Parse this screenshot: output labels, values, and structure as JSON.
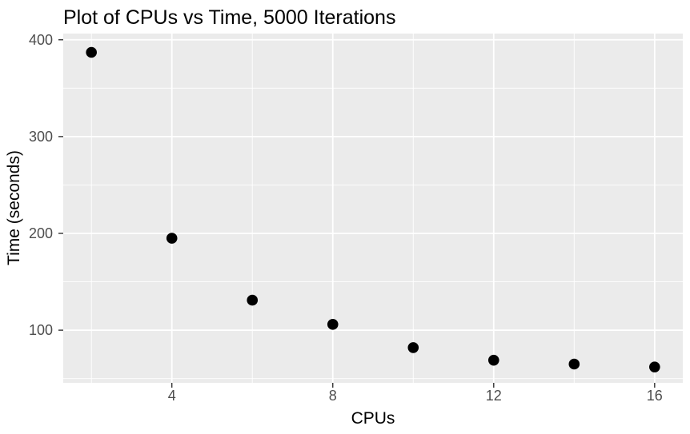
{
  "chart_data": {
    "type": "scatter",
    "title": "Plot of CPUs vs Time, 5000 Iterations",
    "xlabel": "CPUs",
    "ylabel": "Time (seconds)",
    "x": [
      2,
      4,
      6,
      8,
      10,
      12,
      14,
      16
    ],
    "y": [
      387,
      195,
      131,
      106,
      82,
      69,
      65,
      62
    ],
    "x_ticks": [
      4,
      8,
      12,
      16
    ],
    "y_ticks": [
      100,
      200,
      300,
      400
    ],
    "x_minor_gridlines": [
      2,
      6,
      10,
      14
    ],
    "y_minor_gridlines": [
      50,
      150,
      250,
      350
    ],
    "xlim": [
      1.3,
      16.7
    ],
    "ylim": [
      45.6,
      406.4
    ],
    "grid": "on",
    "legend": "none",
    "style": "ggplot2",
    "colors": {
      "figure_background": "#FFFFFF",
      "panel_background": "#EBEBEB",
      "gridline": "#FFFFFF",
      "point": "#000000",
      "tick_mark": "#333333",
      "tick_label": "#4D4D4D",
      "axis_title": "#000000",
      "title": "#000000"
    }
  }
}
